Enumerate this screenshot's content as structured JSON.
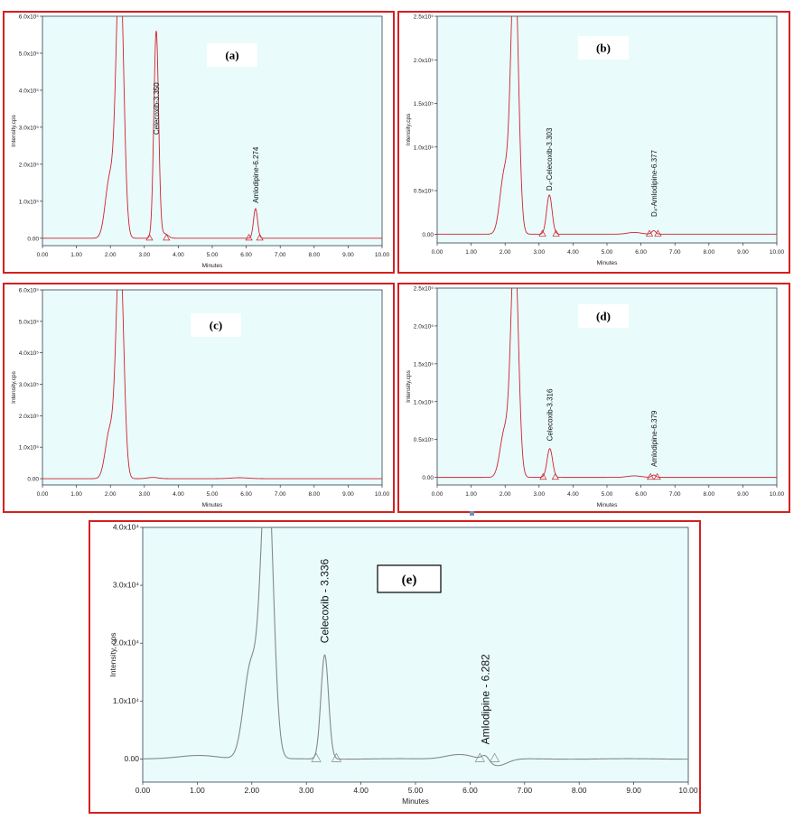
{
  "chart_data": [
    {
      "panel": "(a)",
      "type": "line",
      "xlabel": "Minutes",
      "ylabel": "Intensity,cps",
      "xlim": [
        0,
        10
      ],
      "ylim": [
        -0.2,
        6.0
      ],
      "xticks": [
        "0.00",
        "1.00",
        "2.00",
        "3.00",
        "4.00",
        "5.00",
        "6.00",
        "7.00",
        "8.00",
        "9.00",
        "10.00"
      ],
      "yticks": [
        "0.00",
        "1.0x10⁵",
        "2.0x10⁵",
        "3.0x10⁵",
        "4.0x10⁵",
        "5.0x10⁵",
        "6.0x10⁵"
      ],
      "ytick_values": [
        0,
        1,
        2,
        3,
        4,
        5,
        6
      ],
      "line_color": "#d2202e",
      "peaks": [
        {
          "rt": 1.98,
          "height": 1.6,
          "width": 0.13
        },
        {
          "rt": 2.28,
          "height": 7.6,
          "width": 0.11
        },
        {
          "rt": 3.35,
          "height": 5.6,
          "width": 0.07
        },
        {
          "rt": 3.6,
          "height": 0.12,
          "width": 0.1
        },
        {
          "rt": 6.274,
          "height": 0.8,
          "width": 0.06
        }
      ],
      "annotations": [
        {
          "text": "Celecoxib-3.350",
          "x": 3.35,
          "y": 2.8
        },
        {
          "text": "Amlodipine-6.274",
          "x": 6.274,
          "y": 0.95
        }
      ],
      "markers": [
        3.15,
        3.65,
        6.08,
        6.4
      ]
    },
    {
      "panel": "(b)",
      "type": "line",
      "xlabel": "Minutes",
      "ylabel": "Intensity,cps",
      "xlim": [
        0,
        10
      ],
      "ylim": [
        -0.1,
        2.5
      ],
      "xticks": [
        "0.00",
        "1.00",
        "2.00",
        "3.00",
        "4.00",
        "5.00",
        "6.00",
        "7.00",
        "8.00",
        "9.00",
        "10.00"
      ],
      "yticks": [
        "0.00",
        "0.5x10⁵",
        "1.0x10⁵",
        "1.5x10⁵",
        "2.0x10⁵",
        "2.5x10⁵"
      ],
      "ytick_values": [
        0,
        0.5,
        1.0,
        1.5,
        2.0,
        2.5
      ],
      "line_color": "#d2202e",
      "peaks": [
        {
          "rt": 1.98,
          "height": 0.7,
          "width": 0.13
        },
        {
          "rt": 2.28,
          "height": 3.2,
          "width": 0.11
        },
        {
          "rt": 3.303,
          "height": 0.45,
          "width": 0.08
        },
        {
          "rt": 5.8,
          "height": 0.02,
          "width": 0.2
        },
        {
          "rt": 6.377,
          "height": 0.04,
          "width": 0.06
        }
      ],
      "annotations": [
        {
          "text": "D₄-Celecoxib-3.303",
          "x": 3.303,
          "y": 0.5
        },
        {
          "text": "D₄-Amlodipine-6.377",
          "x": 6.377,
          "y": 0.2
        }
      ],
      "markers": [
        3.1,
        3.5,
        6.25,
        6.5
      ]
    },
    {
      "panel": "(c)",
      "type": "line",
      "xlabel": "Minutes",
      "ylabel": "Intensity,cps",
      "xlim": [
        0,
        10
      ],
      "ylim": [
        -0.2,
        6.0
      ],
      "xticks": [
        "0.00",
        "1.00",
        "2.00",
        "3.00",
        "4.00",
        "5.00",
        "6.00",
        "7.00",
        "8.00",
        "9.00",
        "10.00"
      ],
      "yticks": [
        "0.00",
        "1.0x10⁵",
        "2.0x10⁵",
        "3.0x10⁵",
        "4.0x10⁵",
        "5.0x10⁵",
        "6.0x10⁵"
      ],
      "ytick_values": [
        0,
        1,
        2,
        3,
        4,
        5,
        6
      ],
      "line_color": "#d2202e",
      "peaks": [
        {
          "rt": 1.98,
          "height": 1.5,
          "width": 0.13
        },
        {
          "rt": 2.28,
          "height": 7.4,
          "width": 0.11
        },
        {
          "rt": 3.25,
          "height": 0.04,
          "width": 0.15
        },
        {
          "rt": 5.8,
          "height": 0.03,
          "width": 0.25
        }
      ],
      "annotations": [],
      "markers": []
    },
    {
      "panel": "(d)",
      "type": "line",
      "xlabel": "Minutes",
      "ylabel": "Intensity,cps",
      "xlim": [
        0,
        10
      ],
      "ylim": [
        -0.1,
        2.5
      ],
      "xticks": [
        "0.00",
        "1.00",
        "2.00",
        "3.00",
        "4.00",
        "5.00",
        "6.00",
        "7.00",
        "8.00",
        "9.00",
        "10.00"
      ],
      "yticks": [
        "0.00",
        "0.5x10⁵",
        "1.0x10⁵",
        "1.5x10⁵",
        "2.0x10⁵",
        "2.5x10⁵"
      ],
      "ytick_values": [
        0,
        0.5,
        1.0,
        1.5,
        2.0,
        2.5
      ],
      "line_color": "#d2202e",
      "peaks": [
        {
          "rt": 1.98,
          "height": 0.6,
          "width": 0.13
        },
        {
          "rt": 2.28,
          "height": 3.1,
          "width": 0.11
        },
        {
          "rt": 3.316,
          "height": 0.38,
          "width": 0.08
        },
        {
          "rt": 5.8,
          "height": 0.02,
          "width": 0.2
        },
        {
          "rt": 6.379,
          "height": 0.03,
          "width": 0.06
        }
      ],
      "annotations": [
        {
          "text": "Celecoxib-3.316",
          "x": 3.316,
          "y": 0.48
        },
        {
          "text": "Amlodipine-6.379",
          "x": 6.379,
          "y": 0.14
        }
      ],
      "markers": [
        3.12,
        3.48,
        6.28,
        6.48
      ]
    },
    {
      "panel": "(e)",
      "type": "line",
      "xlabel": "Minutes",
      "ylabel": "Intensity, cps",
      "xlim": [
        0,
        10
      ],
      "ylim": [
        -0.4,
        4.0
      ],
      "xticks": [
        "0.00",
        "1.00",
        "2.00",
        "3.00",
        "4.00",
        "5.00",
        "6.00",
        "7.00",
        "8.00",
        "9.00",
        "10.00"
      ],
      "yticks": [
        "0.00",
        "1.0x10⁴",
        "2.0x10⁴",
        "3.0x10⁴",
        "4.0x10⁴"
      ],
      "ytick_values": [
        0,
        1,
        2,
        3,
        4
      ],
      "line_color": "#888888",
      "peaks": [
        {
          "rt": 1.98,
          "height": 1.6,
          "width": 0.13
        },
        {
          "rt": 2.28,
          "height": 5.2,
          "width": 0.11
        },
        {
          "rt": 3.336,
          "height": 1.8,
          "width": 0.07
        },
        {
          "rt": 1.05,
          "height": 0.06,
          "width": 0.35
        },
        {
          "rt": 5.8,
          "height": 0.08,
          "width": 0.25
        },
        {
          "rt": 6.282,
          "height": 0.1,
          "width": 0.07
        },
        {
          "rt": 6.5,
          "height": -0.12,
          "width": 0.18
        }
      ],
      "annotations": [
        {
          "text": "Celecoxib - 3.336",
          "x": 3.336,
          "y": 2.0
        },
        {
          "text": "Amlodipine - 6.282",
          "x": 6.282,
          "y": 0.25
        }
      ],
      "markers": [
        3.18,
        3.55,
        6.18,
        6.45
      ]
    }
  ]
}
